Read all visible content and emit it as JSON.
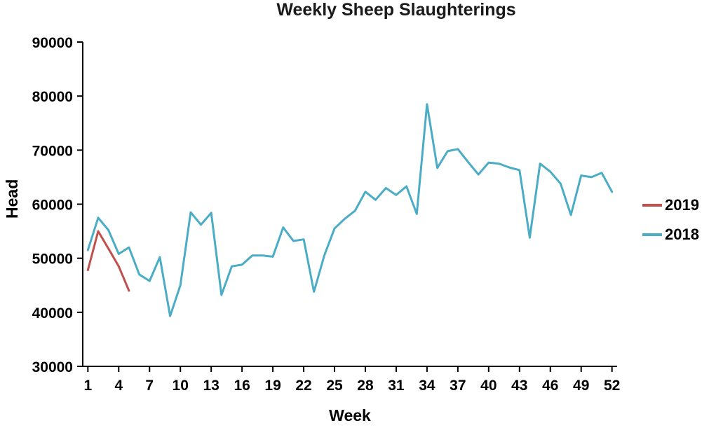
{
  "page": {
    "background": "#ffffff"
  },
  "chart_data": {
    "type": "line",
    "title": "Weekly Sheep Slaughterings",
    "xlabel": "Week",
    "ylabel": "Head",
    "xlim": [
      1,
      52
    ],
    "ylim": [
      30000,
      90000
    ],
    "grid": false,
    "legend_position": "right",
    "x_ticks": [
      1,
      4,
      7,
      10,
      13,
      16,
      19,
      22,
      25,
      28,
      31,
      34,
      37,
      40,
      43,
      46,
      49,
      52
    ],
    "y_ticks": [
      30000,
      40000,
      50000,
      60000,
      70000,
      80000,
      90000
    ],
    "series": [
      {
        "name": "2019",
        "color": "#c0504d",
        "x": [
          1,
          2,
          3,
          4,
          5
        ],
        "values": [
          47800,
          55000,
          51800,
          48500,
          44000
        ]
      },
      {
        "name": "2018",
        "color": "#4bacc6",
        "x": [
          1,
          2,
          3,
          4,
          5,
          6,
          7,
          8,
          9,
          10,
          11,
          12,
          13,
          14,
          15,
          16,
          17,
          18,
          19,
          20,
          21,
          22,
          23,
          24,
          25,
          26,
          27,
          28,
          29,
          30,
          31,
          32,
          33,
          34,
          35,
          36,
          37,
          38,
          39,
          40,
          41,
          42,
          43,
          44,
          45,
          46,
          47,
          48,
          49,
          50,
          51,
          52
        ],
        "values": [
          51500,
          57500,
          55200,
          50800,
          52000,
          47000,
          45800,
          50200,
          39300,
          45000,
          58500,
          56200,
          58400,
          43200,
          48500,
          48800,
          50500,
          50500,
          50300,
          55700,
          53200,
          53500,
          43800,
          50500,
          55500,
          57300,
          58800,
          62300,
          60800,
          63000,
          61700,
          63300,
          58200,
          78500,
          66700,
          69800,
          70200,
          67800,
          65500,
          67700,
          67500,
          66800,
          66300,
          53800,
          67500,
          66000,
          63800,
          58000,
          65300,
          65000,
          65800,
          62300
        ]
      }
    ]
  }
}
